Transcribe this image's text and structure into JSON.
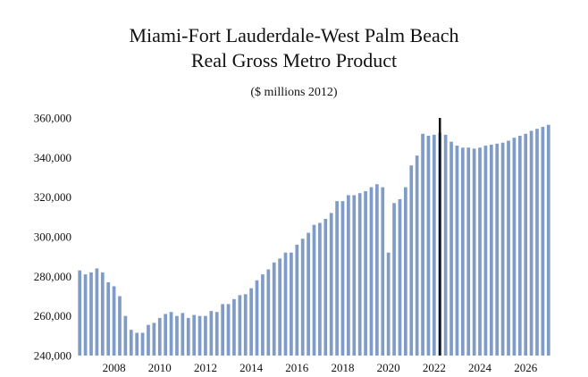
{
  "chart_data": {
    "type": "bar",
    "title": [
      "Miami-Fort Lauderdale-West Palm Beach",
      "Real Gross Metro Product"
    ],
    "subtitle": "($ millions 2012)",
    "xlabel": "",
    "ylabel": "",
    "ylim": [
      240000,
      360000
    ],
    "y_ticks": [
      240000,
      260000,
      280000,
      300000,
      320000,
      340000,
      360000
    ],
    "y_tick_labels": [
      "240,000",
      "260,000",
      "280,000",
      "300,000",
      "320,000",
      "340,000",
      "360,000"
    ],
    "x_tick_labels": [
      "2008",
      "2010",
      "2012",
      "2014",
      "2016",
      "2018",
      "2020",
      "2022",
      "2024",
      "2026"
    ],
    "x_tick_quarter_index": [
      6,
      14,
      22,
      30,
      38,
      46,
      54,
      62,
      70,
      78
    ],
    "forecast_marker_quarter_index": 63,
    "bar_color": "#7f9cc9",
    "marker_color": "#111111",
    "series": [
      {
        "name": "Real Gross Metro Product",
        "values": [
          283000,
          281000,
          282000,
          284000,
          282000,
          277000,
          275000,
          270000,
          260000,
          253000,
          251500,
          251500,
          255500,
          256500,
          259000,
          261000,
          262000,
          260000,
          261500,
          259000,
          260500,
          260000,
          260000,
          262500,
          262000,
          266000,
          266000,
          268500,
          270500,
          271000,
          274000,
          278000,
          281000,
          283500,
          287000,
          289000,
          292000,
          292000,
          296000,
          299000,
          302000,
          306000,
          307000,
          309000,
          312000,
          318000,
          318000,
          321000,
          321000,
          322000,
          323000,
          325000,
          326500,
          325000,
          292000,
          317000,
          319000,
          325000,
          336000,
          341000,
          352000,
          351000,
          351500,
          352500,
          351500,
          348000,
          346000,
          345000,
          345000,
          344500,
          345000,
          346000,
          346500,
          347000,
          347500,
          348500,
          350000,
          351000,
          352000,
          353500,
          354500,
          355500,
          356500
        ]
      }
    ]
  }
}
